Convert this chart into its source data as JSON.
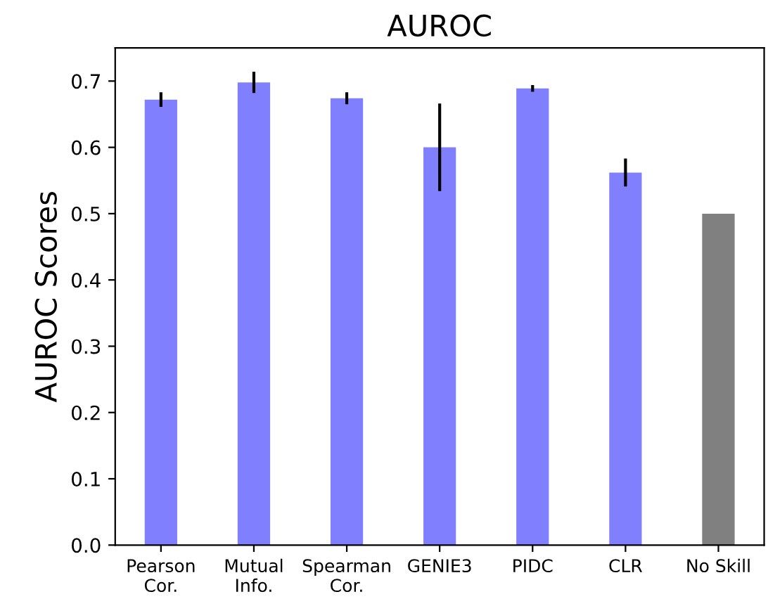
{
  "chart_data": {
    "type": "bar",
    "title": "AUROC",
    "ylabel": "AUROC Scores",
    "categories": [
      "Pearson\nCor.",
      "Mutual\nInfo.",
      "Spearman\nCor.",
      "GENIE3",
      "PIDC",
      "CLR",
      "No Skill"
    ],
    "values": [
      0.672,
      0.698,
      0.674,
      0.6,
      0.689,
      0.562,
      0.5
    ],
    "errors": [
      0.011,
      0.016,
      0.009,
      0.066,
      0.005,
      0.021,
      null
    ],
    "colors": [
      "#8080ff",
      "#8080ff",
      "#8080ff",
      "#8080ff",
      "#8080ff",
      "#8080ff",
      "#808080"
    ],
    "ylim": [
      0,
      0.75
    ],
    "yticks": [
      {
        "value": 0,
        "label": "0.0"
      },
      0.1,
      0.2,
      0.3,
      0.4,
      0.5,
      0.6,
      0.7
    ],
    "grid": false
  }
}
